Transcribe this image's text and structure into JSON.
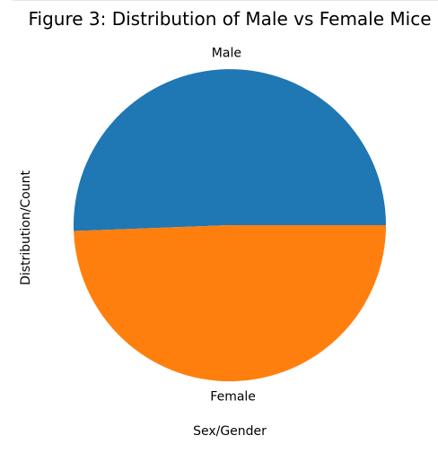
{
  "chart_data": {
    "type": "pie",
    "title": "Figure 3: Distribution of Male vs Female Mice",
    "xlabel": "Sex/Gender",
    "ylabel": "Distribution/Count",
    "categories": [
      "Male",
      "Female"
    ],
    "values": [
      50.6,
      49.4
    ],
    "colors": [
      "#1f77b4",
      "#ff7f0e"
    ],
    "start_angle_deg": 0,
    "direction": "counterclockwise",
    "grid": false,
    "legend": "none"
  }
}
